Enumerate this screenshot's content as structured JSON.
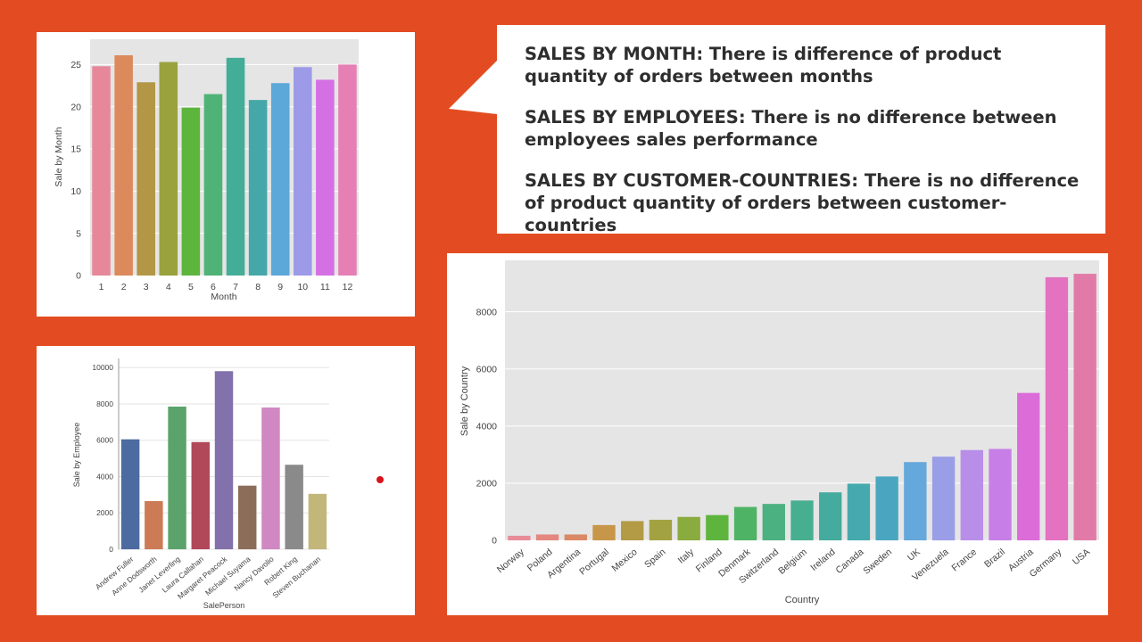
{
  "callout": {
    "lines": [
      "SALES BY MONTH: There is difference  of product quantity of orders between months",
      "SALES BY EMPLOYEES:  There is no difference  between employees sales performance",
      "SALES BY CUSTOMER-COUNTRIES: There is no difference  of product quantity of orders between customer-countries"
    ]
  },
  "colors": {
    "background": "#e34c22",
    "panel": "#ffffff",
    "plot_bg": "#e5e5e5",
    "marker": "#d8141c"
  },
  "chart_data": [
    {
      "id": "month",
      "type": "bar",
      "title": "",
      "xlabel": "Month",
      "ylabel": "Sale by Month",
      "categories": [
        "1",
        "2",
        "3",
        "4",
        "5",
        "6",
        "7",
        "8",
        "9",
        "10",
        "11",
        "12"
      ],
      "values": [
        24.8,
        26.1,
        22.9,
        25.3,
        19.9,
        21.5,
        25.8,
        20.8,
        22.8,
        24.7,
        23.2,
        25.0
      ],
      "colors": [
        "#e6889a",
        "#dc8a5c",
        "#b39646",
        "#99a23d",
        "#5db53d",
        "#4fb377",
        "#43ad98",
        "#45a7a8",
        "#5ca8d9",
        "#9d9ae8",
        "#d470e3",
        "#e57fb4"
      ],
      "ylim": [
        0,
        28
      ],
      "yticks": [
        0,
        5,
        10,
        15,
        20,
        25
      ],
      "grid": true
    },
    {
      "id": "employee",
      "type": "bar",
      "title": "",
      "xlabel": "SalePerson",
      "ylabel": "Sale by Employee",
      "categories": [
        "Andrew Fuller",
        "Anne Dodsworth",
        "Janet Leverling",
        "Laura Callahan",
        "Margaret Peacock",
        "Michael Suyama",
        "Nancy Davolio",
        "Robert King",
        "Steven Buchanan"
      ],
      "values": [
        6050,
        2650,
        7850,
        5900,
        9800,
        3500,
        7800,
        4650,
        3050
      ],
      "colors": [
        "#4c6ba0",
        "#cc7b56",
        "#5ba36b",
        "#b0485a",
        "#8271aa",
        "#8c6d5a",
        "#cf88c2",
        "#8a8a8a",
        "#c2b67a"
      ],
      "ylim": [
        0,
        10500
      ],
      "yticks": [
        0,
        2000,
        4000,
        6000,
        8000,
        10000
      ],
      "grid": true
    },
    {
      "id": "country",
      "type": "bar",
      "title": "",
      "xlabel": "Country",
      "ylabel": "Sale by Country",
      "categories": [
        "Norway",
        "Poland",
        "Argentina",
        "Portugal",
        "Mexico",
        "Spain",
        "Italy",
        "Finland",
        "Denmark",
        "Switzerland",
        "Belgium",
        "Ireland",
        "Canada",
        "Sweden",
        "UK",
        "Venezuela",
        "France",
        "Brazil",
        "Austria",
        "Germany",
        "USA"
      ],
      "values": [
        160,
        205,
        205,
        535,
        675,
        720,
        820,
        885,
        1170,
        1275,
        1395,
        1680,
        1985,
        2235,
        2740,
        2930,
        3160,
        3200,
        5160,
        9210,
        9330
      ],
      "colors": [
        "#e78c98",
        "#e4877e",
        "#da8866",
        "#c79648",
        "#b39b46",
        "#a3a243",
        "#8aab3e",
        "#5eb53d",
        "#4fb365",
        "#4cb180",
        "#48ae90",
        "#45ab9e",
        "#46a9ad",
        "#4aa6c0",
        "#65a8db",
        "#9a9ee7",
        "#b88ee9",
        "#c77fe7",
        "#db6dd9",
        "#e372c0",
        "#e27aa8"
      ],
      "ylim": [
        0,
        9800
      ],
      "yticks": [
        0,
        2000,
        4000,
        6000,
        8000
      ],
      "grid": true
    }
  ]
}
